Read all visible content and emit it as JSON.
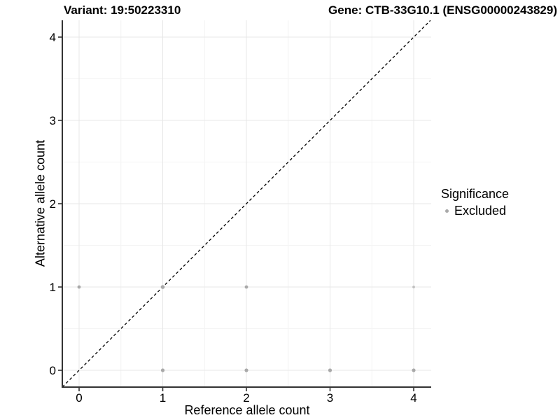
{
  "header": {
    "variant_title": "Variant: 19:50223310",
    "gene_title": "Gene: CTB-33G10.1 (ENSG00000243829)"
  },
  "chart_data": {
    "type": "scatter",
    "xlabel": "Reference allele count",
    "ylabel": "Alternative allele count",
    "xlim": [
      -0.2,
      4.2
    ],
    "ylim": [
      -0.2,
      4.2
    ],
    "x_ticks": [
      "0",
      "1",
      "2",
      "3",
      "4"
    ],
    "y_ticks": [
      "0",
      "1",
      "2",
      "3",
      "4"
    ],
    "grid": "major and minor gridlines on white panel",
    "legend": {
      "title": "Significance",
      "position": "right",
      "items": [
        {
          "label": "Excluded",
          "color": "#a9a9a9"
        }
      ]
    },
    "identity_line": {
      "type": "abline",
      "slope": 1,
      "intercept": 0,
      "style": "dashed",
      "color": "#000000"
    },
    "series": [
      {
        "name": "Excluded",
        "color": "#a9a9a9",
        "points": [
          {
            "x": 0,
            "y": 1,
            "r": 2.4
          },
          {
            "x": 1,
            "y": 1,
            "r": 2.8
          },
          {
            "x": 2,
            "y": 1,
            "r": 2.4
          },
          {
            "x": 4,
            "y": 1,
            "r": 1.9,
            "color": "#bfbfbf"
          },
          {
            "x": 1,
            "y": 0,
            "r": 2.6
          },
          {
            "x": 2,
            "y": 0,
            "r": 2.6
          },
          {
            "x": 3,
            "y": 0,
            "r": 2.6
          },
          {
            "x": 4,
            "y": 0,
            "r": 2.6
          }
        ]
      }
    ],
    "colors": {
      "grid_major": "#e7e7e7",
      "grid_minor": "#f4f4f4",
      "axis_line": "#333333",
      "tick_text": "#000000",
      "dashed_line": "#000000"
    }
  }
}
